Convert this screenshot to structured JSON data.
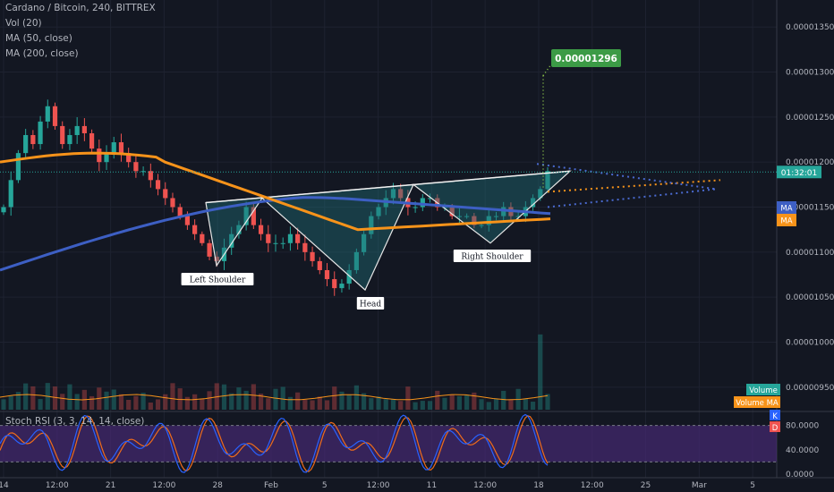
{
  "legend": {
    "title": "Cardano / Bitcoin, 240, BITTREX",
    "vol": "Vol (20)",
    "ma50": "MA (50, close)",
    "ma200": "MA (200, close)",
    "rsi": "Stoch RSI (3, 3, 14, 14, close)"
  },
  "colors": {
    "background": "#131722",
    "up": "#26a69a",
    "down": "#ef5350",
    "ma50": "#f7931a",
    "ma200": "#3d5fc4",
    "pattern_fill": "#1f6b73",
    "rsi_k": "#2962ff",
    "rsi_d": "#ef6c1a",
    "rsi_band": "#4a2a7a",
    "target_box": "#3c9b46"
  },
  "annotations": {
    "target": "0.00001296",
    "left_shoulder": "Left Shoulder",
    "head": "Head",
    "right_shoulder": "Right Shoulder",
    "countdown": "01:32:01"
  },
  "tags": {
    "ma_blue": "MA",
    "ma_orange": "MA",
    "volume": "Volume",
    "volume_ma": "Volume MA",
    "rsi_k": "K",
    "rsi_d": "D"
  },
  "chart_data": {
    "type": "candlestick",
    "symbol": "Cardano / Bitcoin",
    "interval": "240",
    "exchange": "BITTREX",
    "price_axis": {
      "ticks": [
        "0.00001350",
        "0.00001300",
        "0.00001250",
        "0.00001200",
        "0.00001150",
        "0.00001100",
        "0.00001050",
        "0.00001000",
        "0.00000950"
      ],
      "ylim": [
        9.25e-06,
        1.38e-05
      ]
    },
    "rsi_axis": {
      "ticks": [
        "80.0000",
        "40.0000",
        "0.0000"
      ],
      "ylim": [
        0,
        100
      ],
      "band": [
        20,
        80
      ]
    },
    "time_axis": [
      "14",
      "12:00",
      "21",
      "12:00",
      "28",
      "Feb",
      "5",
      "12:00",
      "11",
      "12:00",
      "18",
      "12:00",
      "25",
      "Mar",
      "5"
    ],
    "current_price": 1.189e-05,
    "target_price": 1.296e-05,
    "ma50_last": 1.137e-05,
    "ma200_last": 1.15e-05,
    "close_series": [
      1.15e-05,
      1.18e-05,
      1.21e-05,
      1.23e-05,
      1.22e-05,
      1.245e-05,
      1.262e-05,
      1.24e-05,
      1.22e-05,
      1.23e-05,
      1.24e-05,
      1.232e-05,
      1.215e-05,
      1.2e-05,
      1.21e-05,
      1.222e-05,
      1.21e-05,
      1.2e-05,
      1.19e-05,
      1.19e-05,
      1.18e-05,
      1.17e-05,
      1.16e-05,
      1.15e-05,
      1.14e-05,
      1.13e-05,
      1.12e-05,
      1.11e-05,
      1.095e-05,
      1.09e-05,
      1.105e-05,
      1.12e-05,
      1.13e-05,
      1.15e-05,
      1.13e-05,
      1.12e-05,
      1.11e-05,
      1.11e-05,
      1.11e-05,
      1.12e-05,
      1.11e-05,
      1.1e-05,
      1.09e-05,
      1.08e-05,
      1.07e-05,
      1.06e-05,
      1.065e-05,
      1.08e-05,
      1.1e-05,
      1.12e-05,
      1.14e-05,
      1.15e-05,
      1.16e-05,
      1.17e-05,
      1.16e-05,
      1.15e-05,
      1.15e-05,
      1.16e-05,
      1.16e-05,
      1.15e-05,
      1.15e-05,
      1.14e-05,
      1.14e-05,
      1.14e-05,
      1.13e-05,
      1.13e-05,
      1.14e-05,
      1.14e-05,
      1.15e-05,
      1.14e-05,
      1.14e-05,
      1.15e-05,
      1.16e-05,
      1.17e-05,
      1.19e-05
    ],
    "patterns": [
      {
        "name": "Left Shoulder",
        "peaks": [
          "28",
          "Feb"
        ]
      },
      {
        "name": "Head",
        "peaks": [
          "Feb",
          "11"
        ]
      },
      {
        "name": "Right Shoulder",
        "peaks": [
          "11",
          "18"
        ]
      }
    ]
  }
}
